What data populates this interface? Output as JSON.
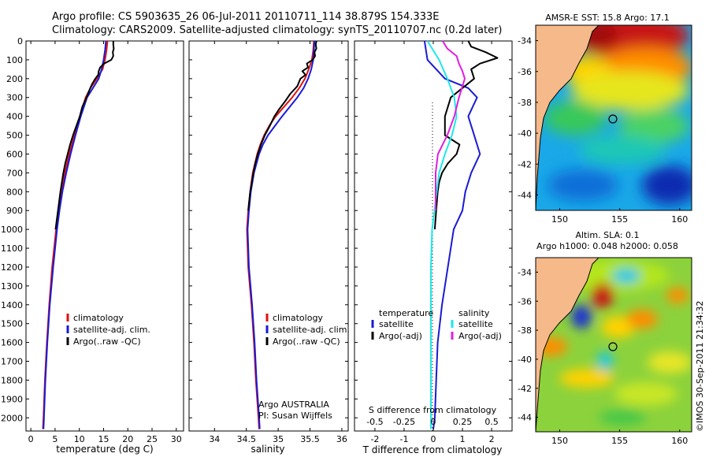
{
  "header": {
    "title_line1": "Argo profile: CS 5903635_26 06-Jul-2011 20110711_114 38.879S 154.333E",
    "title_line2": "Climatology: CARS2009. Satellite-adjusted climatology: synTS_20110707.nc (0.2d later)"
  },
  "colors": {
    "climatology": "#e01010",
    "satellite": "#1a1ad6",
    "argo": "#000000",
    "sat_salinity": "#1ee8e8",
    "argo_salinity": "#e01ee0",
    "land": "#f5b98a"
  },
  "depth_axis": {
    "range": [
      0,
      2070
    ],
    "ticks": [
      0,
      100,
      200,
      300,
      400,
      500,
      600,
      700,
      800,
      900,
      1000,
      1100,
      1200,
      1300,
      1400,
      1500,
      1600,
      1700,
      1800,
      1900,
      2000
    ]
  },
  "chart_data": [
    {
      "type": "line",
      "name": "temperature-profile",
      "xlabel": "temperature (deg C)",
      "xlim": [
        -1,
        31.5
      ],
      "xticks": [
        0,
        5,
        10,
        15,
        20,
        25,
        30
      ],
      "legend": [
        "climatology",
        "satellite-adj. clim.",
        "Argo(..raw -QC)"
      ],
      "series": [
        {
          "name": "climatology",
          "color_key": "climatology",
          "depth": [
            0,
            50,
            100,
            150,
            200,
            250,
            300,
            400,
            500,
            600,
            700,
            800,
            900,
            1000,
            1200,
            1400,
            1600,
            1800,
            2000,
            2060
          ],
          "values": [
            15.8,
            15.6,
            15.3,
            14.8,
            13.6,
            12.3,
            11.3,
            10.1,
            9.0,
            7.9,
            7.0,
            6.3,
            5.7,
            5.2,
            4.4,
            3.8,
            3.3,
            2.9,
            2.6,
            2.5
          ]
        },
        {
          "name": "satellite",
          "color_key": "satellite",
          "depth": [
            0,
            50,
            100,
            150,
            200,
            250,
            300,
            400,
            500,
            600,
            700,
            800,
            900,
            1000,
            1200,
            1400,
            1600,
            1800,
            2000,
            2060
          ],
          "values": [
            15.5,
            15.3,
            15.0,
            14.6,
            14.0,
            12.8,
            11.6,
            10.3,
            9.2,
            8.2,
            7.3,
            6.5,
            5.9,
            5.4,
            4.6,
            3.9,
            3.4,
            3.0,
            2.7,
            2.6
          ]
        },
        {
          "name": "Argo",
          "color_key": "argo",
          "depth": [
            0,
            20,
            40,
            60,
            80,
            100,
            120,
            140,
            160,
            180,
            200,
            230,
            260,
            300,
            350,
            400,
            450,
            500,
            550,
            600,
            650,
            700,
            800,
            900,
            1000
          ],
          "values": [
            17.0,
            17.0,
            17.1,
            16.9,
            17.0,
            16.6,
            15.1,
            14.3,
            14.0,
            13.9,
            13.3,
            12.6,
            12.1,
            11.5,
            10.6,
            10.1,
            9.4,
            8.7,
            8.1,
            7.6,
            7.1,
            6.7,
            6.1,
            5.6,
            5.1
          ]
        }
      ]
    },
    {
      "type": "line",
      "name": "salinity-profile",
      "xlabel": "salinity",
      "xlim": [
        33.6,
        36.1
      ],
      "xticks": [
        34,
        34.5,
        35,
        35.5,
        36
      ],
      "legend": [
        "climatology",
        "satellite-adj. clim.",
        "Argo(..raw -QC)"
      ],
      "annotations": [
        "Argo AUSTRALIA",
        "PI: Susan Wijffels"
      ],
      "series": [
        {
          "name": "climatology",
          "color_key": "climatology",
          "depth": [
            0,
            50,
            100,
            150,
            200,
            250,
            300,
            350,
            400,
            450,
            500,
            550,
            600,
            700,
            800,
            900,
            1000,
            1200,
            1400,
            1600,
            1800,
            2000,
            2060
          ],
          "values": [
            35.56,
            35.55,
            35.53,
            35.48,
            35.42,
            35.33,
            35.22,
            35.09,
            34.96,
            34.86,
            34.78,
            34.72,
            34.67,
            34.6,
            34.56,
            34.53,
            34.51,
            34.53,
            34.58,
            34.62,
            34.65,
            34.69,
            34.7
          ]
        },
        {
          "name": "satellite",
          "color_key": "satellite",
          "depth": [
            0,
            50,
            100,
            150,
            200,
            250,
            300,
            350,
            400,
            450,
            500,
            550,
            600,
            700,
            800,
            900,
            1000,
            1200,
            1400,
            1600,
            1800,
            2000,
            2060
          ],
          "values": [
            35.57,
            35.56,
            35.55,
            35.52,
            35.47,
            35.4,
            35.3,
            35.18,
            35.06,
            34.95,
            34.84,
            34.76,
            34.7,
            34.62,
            34.57,
            34.54,
            34.52,
            34.54,
            34.59,
            34.63,
            34.66,
            34.7,
            34.71
          ]
        },
        {
          "name": "Argo",
          "color_key": "argo",
          "depth": [
            0,
            20,
            40,
            60,
            80,
            100,
            120,
            140,
            160,
            180,
            200,
            240,
            280,
            320,
            360,
            400,
            450,
            500,
            550,
            600,
            650,
            700,
            800,
            900
          ],
          "values": [
            35.6,
            35.59,
            35.6,
            35.57,
            35.58,
            35.54,
            35.45,
            35.47,
            35.38,
            35.43,
            35.35,
            35.3,
            35.19,
            35.11,
            35.02,
            34.94,
            34.87,
            34.79,
            34.73,
            34.68,
            34.64,
            34.61,
            34.56,
            34.53
          ]
        }
      ]
    },
    {
      "type": "line",
      "name": "difference-profile",
      "xlabel": "T difference from climatology",
      "xlabel_top": "S difference from climatology",
      "xlim": [
        -2.7,
        2.7
      ],
      "xticks_t": [
        -2,
        -1,
        0,
        1,
        2
      ],
      "xticks_s": [
        -0.5,
        -0.25,
        0,
        0.25,
        0.5
      ],
      "legend_t_title": "temperature",
      "legend_s_title": "salinity",
      "legend_t": [
        "satellite",
        "Argo(-adj)"
      ],
      "legend_s": [
        "satellite",
        "Argo(-adj)"
      ],
      "series": [
        {
          "name": "T satellite",
          "color_key": "satellite",
          "depth": [
            0,
            100,
            200,
            250,
            300,
            400,
            500,
            600,
            700,
            800,
            900,
            1000,
            1200,
            1400,
            1600,
            1800,
            2000,
            2060
          ],
          "values": [
            -0.3,
            -0.2,
            0.4,
            1.2,
            1.5,
            1.2,
            1.4,
            1.6,
            1.3,
            1.1,
            1.0,
            0.7,
            0.5,
            0.3,
            0.15,
            0.1,
            0.05,
            0.0
          ]
        },
        {
          "name": "T Argo",
          "color_key": "argo",
          "depth": [
            0,
            30,
            60,
            90,
            120,
            150,
            200,
            300,
            400,
            500,
            550,
            600,
            650,
            700,
            750,
            800,
            900,
            1000
          ],
          "values": [
            1.2,
            1.3,
            1.8,
            2.2,
            1.6,
            1.3,
            1.4,
            0.6,
            0.4,
            0.4,
            0.9,
            0.8,
            0.5,
            0.3,
            0.2,
            0.15,
            0.1,
            0.05
          ]
        },
        {
          "name": "S satellite",
          "color_key": "sat_salinity",
          "depth": [
            0,
            50,
            100,
            200,
            300,
            400,
            500,
            600,
            700,
            800,
            900,
            1000,
            1200,
            1400,
            1600,
            1800,
            2000,
            2060
          ],
          "values": [
            -0.05,
            0.0,
            0.05,
            0.12,
            0.18,
            0.2,
            0.16,
            0.1,
            0.05,
            0.03,
            0.01,
            -0.01,
            -0.02,
            -0.02,
            -0.02,
            -0.02,
            -0.02,
            -0.02
          ]
        },
        {
          "name": "S Argo",
          "color_key": "argo_salinity",
          "depth": [
            0,
            40,
            80,
            120,
            160,
            200,
            300,
            400,
            500,
            600,
            700,
            800,
            900
          ],
          "values": [
            0.08,
            0.12,
            0.2,
            0.22,
            0.25,
            0.27,
            0.22,
            0.18,
            0.12,
            0.04,
            0.02,
            0.02,
            0.02
          ]
        }
      ]
    },
    {
      "type": "heatmap",
      "name": "sst-map",
      "title": "AMSR-E SST: 15.8 Argo: 17.1",
      "x_ticks": [
        150,
        155,
        160
      ],
      "y_ticks": [
        -34,
        -36,
        -38,
        -40,
        -42,
        -44
      ],
      "xlim": [
        148,
        161
      ],
      "ylim": [
        -45,
        -33
      ],
      "argo_position": {
        "lon": 154.333,
        "lat": -38.879
      }
    },
    {
      "type": "heatmap",
      "name": "sla-map",
      "title_line1": "Altim. SLA: 0.1",
      "title_line2": "Argo h1000: 0.048 h2000: 0.058",
      "x_ticks": [
        150,
        155,
        160
      ],
      "y_ticks": [
        -34,
        -36,
        -38,
        -40,
        -42,
        -44
      ],
      "xlim": [
        148,
        161
      ],
      "ylim": [
        -45,
        -33
      ],
      "argo_position": {
        "lon": 154.333,
        "lat": -38.879
      }
    }
  ],
  "footer": {
    "credit": "©IMOS 30-Sep-2011 21:34:32"
  }
}
